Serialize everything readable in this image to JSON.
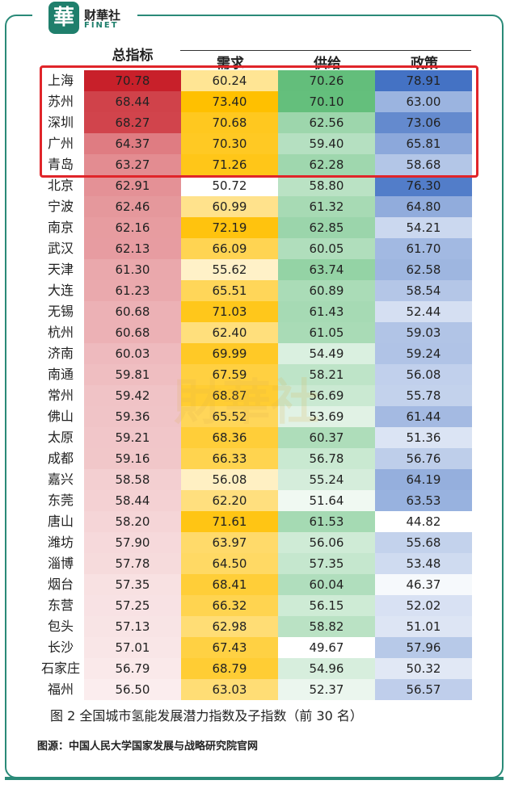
{
  "logo": {
    "glyph": "華",
    "name_cn": "财華社",
    "name_en": "FINET"
  },
  "watermark": "財華社",
  "headers": [
    "总指标",
    "需求",
    "供给",
    "政策"
  ],
  "caption": "图 2  全国城市氢能发展潜力指数及子指数（前 30 名）",
  "source": "图源：中国人民大学国家发展与战略研究院官网",
  "chart_data": {
    "type": "table",
    "columns": [
      "总指标",
      "需求",
      "供给",
      "政策"
    ],
    "rows": [
      {
        "city": "上海",
        "values": [
          70.78,
          60.24,
          70.26,
          78.91
        ]
      },
      {
        "city": "苏州",
        "values": [
          68.44,
          73.4,
          70.1,
          63.0
        ]
      },
      {
        "city": "深圳",
        "values": [
          68.27,
          70.68,
          62.56,
          73.06
        ]
      },
      {
        "city": "广州",
        "values": [
          64.37,
          70.3,
          59.4,
          65.81
        ]
      },
      {
        "city": "青岛",
        "values": [
          63.27,
          71.26,
          62.28,
          58.68
        ]
      },
      {
        "city": "北京",
        "values": [
          62.91,
          50.72,
          58.8,
          76.3
        ]
      },
      {
        "city": "宁波",
        "values": [
          62.46,
          60.99,
          61.32,
          64.8
        ]
      },
      {
        "city": "南京",
        "values": [
          62.16,
          72.19,
          62.85,
          54.21
        ]
      },
      {
        "city": "武汉",
        "values": [
          62.13,
          66.09,
          60.05,
          61.7
        ]
      },
      {
        "city": "天津",
        "values": [
          61.3,
          55.62,
          63.74,
          62.58
        ]
      },
      {
        "city": "大连",
        "values": [
          61.23,
          65.51,
          60.89,
          58.54
        ]
      },
      {
        "city": "无锡",
        "values": [
          60.68,
          71.03,
          61.43,
          52.44
        ]
      },
      {
        "city": "杭州",
        "values": [
          60.68,
          62.4,
          61.05,
          59.03
        ]
      },
      {
        "city": "济南",
        "values": [
          60.03,
          69.99,
          54.49,
          59.24
        ]
      },
      {
        "city": "南通",
        "values": [
          59.81,
          67.59,
          58.21,
          56.08
        ]
      },
      {
        "city": "常州",
        "values": [
          59.42,
          68.87,
          56.69,
          55.78
        ]
      },
      {
        "city": "佛山",
        "values": [
          59.36,
          65.52,
          53.69,
          61.44
        ]
      },
      {
        "city": "太原",
        "values": [
          59.21,
          68.36,
          60.37,
          51.36
        ]
      },
      {
        "city": "成都",
        "values": [
          59.16,
          66.33,
          56.78,
          56.76
        ]
      },
      {
        "city": "嘉兴",
        "values": [
          58.58,
          56.08,
          55.24,
          64.19
        ]
      },
      {
        "city": "东莞",
        "values": [
          58.44,
          62.2,
          51.64,
          63.53
        ]
      },
      {
        "city": "唐山",
        "values": [
          58.2,
          71.61,
          61.53,
          44.82
        ]
      },
      {
        "city": "潍坊",
        "values": [
          57.9,
          63.97,
          56.06,
          55.68
        ]
      },
      {
        "city": "淄博",
        "values": [
          57.78,
          64.5,
          57.35,
          53.48
        ]
      },
      {
        "city": "烟台",
        "values": [
          57.35,
          68.41,
          60.04,
          46.37
        ]
      },
      {
        "city": "东营",
        "values": [
          57.25,
          66.32,
          56.15,
          52.02
        ]
      },
      {
        "city": "包头",
        "values": [
          57.13,
          62.98,
          58.82,
          51.01
        ]
      },
      {
        "city": "长沙",
        "values": [
          57.01,
          67.43,
          49.67,
          57.96
        ]
      },
      {
        "city": "石家庄",
        "values": [
          56.79,
          68.79,
          54.96,
          50.32
        ]
      },
      {
        "city": "福州",
        "values": [
          56.5,
          63.03,
          52.37,
          56.57
        ]
      }
    ],
    "colors": [
      "#c8202a",
      "#ffc000",
      "#63be7b",
      "#4472c4"
    ]
  }
}
